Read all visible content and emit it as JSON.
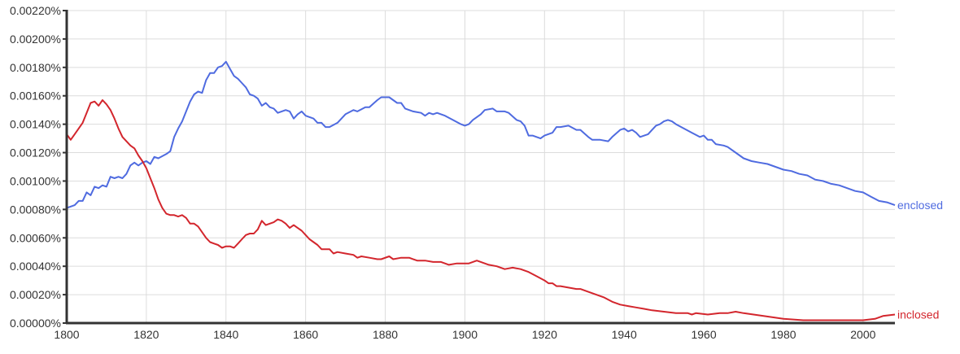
{
  "chart_data": {
    "type": "line",
    "title": "",
    "xlabel": "",
    "ylabel": "",
    "xlim": [
      1800,
      2008
    ],
    "ylim": [
      0,
      0.0022
    ],
    "grid": true,
    "legend": "inline-right",
    "x_ticks": [
      "1800",
      "1820",
      "1840",
      "1860",
      "1880",
      "1900",
      "1920",
      "1940",
      "1960",
      "1980",
      "2000"
    ],
    "y_ticks": [
      "0.00000%",
      "0.00020%",
      "0.00040%",
      "0.00060%",
      "0.00080%",
      "0.00100%",
      "0.00120%",
      "0.00140%",
      "0.00160%",
      "0.00180%",
      "0.00200%",
      "0.00220%"
    ],
    "series": [
      {
        "name": "enclosed",
        "color": "#4f6be0",
        "points": [
          [
            1800,
            0.00081
          ],
          [
            1802,
            0.00083
          ],
          [
            1803,
            0.00086
          ],
          [
            1804,
            0.00086
          ],
          [
            1805,
            0.00092
          ],
          [
            1806,
            0.0009
          ],
          [
            1807,
            0.00096
          ],
          [
            1808,
            0.00095
          ],
          [
            1809,
            0.00097
          ],
          [
            1810,
            0.00096
          ],
          [
            1811,
            0.00103
          ],
          [
            1812,
            0.00102
          ],
          [
            1813,
            0.00103
          ],
          [
            1814,
            0.00102
          ],
          [
            1815,
            0.00105
          ],
          [
            1816,
            0.00111
          ],
          [
            1817,
            0.00113
          ],
          [
            1818,
            0.00111
          ],
          [
            1819,
            0.00113
          ],
          [
            1820,
            0.00114
          ],
          [
            1821,
            0.00112
          ],
          [
            1822,
            0.00117
          ],
          [
            1823,
            0.00116
          ],
          [
            1825,
            0.00119
          ],
          [
            1826,
            0.00121
          ],
          [
            1827,
            0.00131
          ],
          [
            1828,
            0.00137
          ],
          [
            1829,
            0.00142
          ],
          [
            1830,
            0.00149
          ],
          [
            1831,
            0.00156
          ],
          [
            1832,
            0.00161
          ],
          [
            1833,
            0.00163
          ],
          [
            1834,
            0.00162
          ],
          [
            1835,
            0.00171
          ],
          [
            1836,
            0.00176
          ],
          [
            1837,
            0.00176
          ],
          [
            1838,
            0.0018
          ],
          [
            1839,
            0.00181
          ],
          [
            1840,
            0.00184
          ],
          [
            1841,
            0.00179
          ],
          [
            1842,
            0.00174
          ],
          [
            1843,
            0.00172
          ],
          [
            1844,
            0.00169
          ],
          [
            1845,
            0.00166
          ],
          [
            1846,
            0.00161
          ],
          [
            1847,
            0.0016
          ],
          [
            1848,
            0.00158
          ],
          [
            1849,
            0.00153
          ],
          [
            1850,
            0.00155
          ],
          [
            1851,
            0.00152
          ],
          [
            1852,
            0.00151
          ],
          [
            1853,
            0.00148
          ],
          [
            1854,
            0.00149
          ],
          [
            1855,
            0.0015
          ],
          [
            1856,
            0.00149
          ],
          [
            1857,
            0.00144
          ],
          [
            1858,
            0.00147
          ],
          [
            1859,
            0.00149
          ],
          [
            1860,
            0.00146
          ],
          [
            1861,
            0.00145
          ],
          [
            1862,
            0.00144
          ],
          [
            1863,
            0.00141
          ],
          [
            1864,
            0.00141
          ],
          [
            1865,
            0.00138
          ],
          [
            1866,
            0.00138
          ],
          [
            1868,
            0.00141
          ],
          [
            1870,
            0.00147
          ],
          [
            1872,
            0.0015
          ],
          [
            1873,
            0.00149
          ],
          [
            1875,
            0.00152
          ],
          [
            1876,
            0.00152
          ],
          [
            1878,
            0.00157
          ],
          [
            1879,
            0.00159
          ],
          [
            1881,
            0.00159
          ],
          [
            1883,
            0.00155
          ],
          [
            1884,
            0.00155
          ],
          [
            1885,
            0.00151
          ],
          [
            1887,
            0.00149
          ],
          [
            1889,
            0.00148
          ],
          [
            1890,
            0.00146
          ],
          [
            1891,
            0.00148
          ],
          [
            1892,
            0.00147
          ],
          [
            1893,
            0.00148
          ],
          [
            1895,
            0.00146
          ],
          [
            1897,
            0.00143
          ],
          [
            1899,
            0.0014
          ],
          [
            1900,
            0.00139
          ],
          [
            1901,
            0.0014
          ],
          [
            1902,
            0.00143
          ],
          [
            1904,
            0.00147
          ],
          [
            1905,
            0.0015
          ],
          [
            1907,
            0.00151
          ],
          [
            1908,
            0.00149
          ],
          [
            1910,
            0.00149
          ],
          [
            1911,
            0.00148
          ],
          [
            1913,
            0.00143
          ],
          [
            1914,
            0.00142
          ],
          [
            1915,
            0.00139
          ],
          [
            1916,
            0.00132
          ],
          [
            1917,
            0.00132
          ],
          [
            1919,
            0.0013
          ],
          [
            1920,
            0.00132
          ],
          [
            1922,
            0.00134
          ],
          [
            1923,
            0.00138
          ],
          [
            1924,
            0.00138
          ],
          [
            1926,
            0.00139
          ],
          [
            1928,
            0.00136
          ],
          [
            1929,
            0.00136
          ],
          [
            1931,
            0.00131
          ],
          [
            1932,
            0.00129
          ],
          [
            1934,
            0.00129
          ],
          [
            1936,
            0.00128
          ],
          [
            1937,
            0.00131
          ],
          [
            1939,
            0.00136
          ],
          [
            1940,
            0.00137
          ],
          [
            1941,
            0.00135
          ],
          [
            1942,
            0.00136
          ],
          [
            1943,
            0.00134
          ],
          [
            1944,
            0.00131
          ],
          [
            1946,
            0.00133
          ],
          [
            1947,
            0.00136
          ],
          [
            1948,
            0.00139
          ],
          [
            1949,
            0.0014
          ],
          [
            1950,
            0.00142
          ],
          [
            1951,
            0.00143
          ],
          [
            1952,
            0.00142
          ],
          [
            1953,
            0.0014
          ],
          [
            1955,
            0.00137
          ],
          [
            1957,
            0.00134
          ],
          [
            1959,
            0.00131
          ],
          [
            1960,
            0.00132
          ],
          [
            1961,
            0.00129
          ],
          [
            1962,
            0.00129
          ],
          [
            1963,
            0.00126
          ],
          [
            1965,
            0.00125
          ],
          [
            1966,
            0.00124
          ],
          [
            1968,
            0.0012
          ],
          [
            1969,
            0.00118
          ],
          [
            1970,
            0.00116
          ],
          [
            1972,
            0.00114
          ],
          [
            1974,
            0.00113
          ],
          [
            1976,
            0.00112
          ],
          [
            1978,
            0.0011
          ],
          [
            1980,
            0.00108
          ],
          [
            1982,
            0.00107
          ],
          [
            1984,
            0.00105
          ],
          [
            1986,
            0.00104
          ],
          [
            1988,
            0.00101
          ],
          [
            1990,
            0.001
          ],
          [
            1992,
            0.00098
          ],
          [
            1994,
            0.00097
          ],
          [
            1996,
            0.00095
          ],
          [
            1998,
            0.00093
          ],
          [
            2000,
            0.00092
          ],
          [
            2002,
            0.00089
          ],
          [
            2004,
            0.00086
          ],
          [
            2006,
            0.00085
          ],
          [
            2008,
            0.00083
          ]
        ]
      },
      {
        "name": "inclosed",
        "color": "#d3262d",
        "points": [
          [
            1800,
            0.00133
          ],
          [
            1801,
            0.00129
          ],
          [
            1802,
            0.00133
          ],
          [
            1803,
            0.00137
          ],
          [
            1804,
            0.00141
          ],
          [
            1805,
            0.00148
          ],
          [
            1806,
            0.00155
          ],
          [
            1807,
            0.00156
          ],
          [
            1808,
            0.00153
          ],
          [
            1809,
            0.00157
          ],
          [
            1810,
            0.00154
          ],
          [
            1811,
            0.0015
          ],
          [
            1812,
            0.00144
          ],
          [
            1813,
            0.00137
          ],
          [
            1814,
            0.00131
          ],
          [
            1815,
            0.00128
          ],
          [
            1816,
            0.00125
          ],
          [
            1817,
            0.00123
          ],
          [
            1818,
            0.00118
          ],
          [
            1819,
            0.00114
          ],
          [
            1820,
            0.00109
          ],
          [
            1821,
            0.00102
          ],
          [
            1822,
            0.00095
          ],
          [
            1823,
            0.00087
          ],
          [
            1824,
            0.00081
          ],
          [
            1825,
            0.00077
          ],
          [
            1826,
            0.00076
          ],
          [
            1827,
            0.00076
          ],
          [
            1828,
            0.00075
          ],
          [
            1829,
            0.00076
          ],
          [
            1830,
            0.00074
          ],
          [
            1831,
            0.0007
          ],
          [
            1832,
            0.0007
          ],
          [
            1833,
            0.00068
          ],
          [
            1834,
            0.00064
          ],
          [
            1835,
            0.0006
          ],
          [
            1836,
            0.00057
          ],
          [
            1837,
            0.00056
          ],
          [
            1838,
            0.00055
          ],
          [
            1839,
            0.00053
          ],
          [
            1840,
            0.00054
          ],
          [
            1841,
            0.00054
          ],
          [
            1842,
            0.00053
          ],
          [
            1843,
            0.00056
          ],
          [
            1844,
            0.00059
          ],
          [
            1845,
            0.00062
          ],
          [
            1846,
            0.00063
          ],
          [
            1847,
            0.00063
          ],
          [
            1848,
            0.00066
          ],
          [
            1849,
            0.00072
          ],
          [
            1850,
            0.00069
          ],
          [
            1851,
            0.0007
          ],
          [
            1852,
            0.00071
          ],
          [
            1853,
            0.00073
          ],
          [
            1854,
            0.00072
          ],
          [
            1855,
            0.0007
          ],
          [
            1856,
            0.00067
          ],
          [
            1857,
            0.00069
          ],
          [
            1858,
            0.00067
          ],
          [
            1859,
            0.00065
          ],
          [
            1860,
            0.00062
          ],
          [
            1861,
            0.00059
          ],
          [
            1862,
            0.00057
          ],
          [
            1863,
            0.00055
          ],
          [
            1864,
            0.00052
          ],
          [
            1866,
            0.00052
          ],
          [
            1867,
            0.00049
          ],
          [
            1868,
            0.0005
          ],
          [
            1870,
            0.00049
          ],
          [
            1872,
            0.00048
          ],
          [
            1873,
            0.00046
          ],
          [
            1874,
            0.00047
          ],
          [
            1876,
            0.00046
          ],
          [
            1878,
            0.00045
          ],
          [
            1879,
            0.00045
          ],
          [
            1881,
            0.00047
          ],
          [
            1882,
            0.00045
          ],
          [
            1884,
            0.00046
          ],
          [
            1886,
            0.00046
          ],
          [
            1888,
            0.00044
          ],
          [
            1890,
            0.00044
          ],
          [
            1892,
            0.00043
          ],
          [
            1894,
            0.00043
          ],
          [
            1896,
            0.00041
          ],
          [
            1898,
            0.00042
          ],
          [
            1900,
            0.00042
          ],
          [
            1901,
            0.00042
          ],
          [
            1903,
            0.00044
          ],
          [
            1904,
            0.00043
          ],
          [
            1906,
            0.00041
          ],
          [
            1908,
            0.0004
          ],
          [
            1910,
            0.00038
          ],
          [
            1912,
            0.00039
          ],
          [
            1914,
            0.00038
          ],
          [
            1916,
            0.00036
          ],
          [
            1918,
            0.00033
          ],
          [
            1920,
            0.0003
          ],
          [
            1921,
            0.00028
          ],
          [
            1922,
            0.00028
          ],
          [
            1923,
            0.00026
          ],
          [
            1924,
            0.00026
          ],
          [
            1926,
            0.00025
          ],
          [
            1928,
            0.00024
          ],
          [
            1929,
            0.00024
          ],
          [
            1931,
            0.00022
          ],
          [
            1933,
            0.0002
          ],
          [
            1935,
            0.00018
          ],
          [
            1937,
            0.00015
          ],
          [
            1939,
            0.00013
          ],
          [
            1941,
            0.00012
          ],
          [
            1943,
            0.00011
          ],
          [
            1945,
            0.0001
          ],
          [
            1947,
            9e-05
          ],
          [
            1950,
            8e-05
          ],
          [
            1953,
            7e-05
          ],
          [
            1956,
            7e-05
          ],
          [
            1957,
            6e-05
          ],
          [
            1958,
            7e-05
          ],
          [
            1961,
            6e-05
          ],
          [
            1964,
            7e-05
          ],
          [
            1966,
            7e-05
          ],
          [
            1968,
            8e-05
          ],
          [
            1970,
            7e-05
          ],
          [
            1975,
            5e-05
          ],
          [
            1980,
            3e-05
          ],
          [
            1985,
            2e-05
          ],
          [
            1990,
            2e-05
          ],
          [
            1995,
            2e-05
          ],
          [
            2000,
            2e-05
          ],
          [
            2003,
            3e-05
          ],
          [
            2005,
            5e-05
          ],
          [
            2008,
            6e-05
          ]
        ]
      }
    ]
  }
}
